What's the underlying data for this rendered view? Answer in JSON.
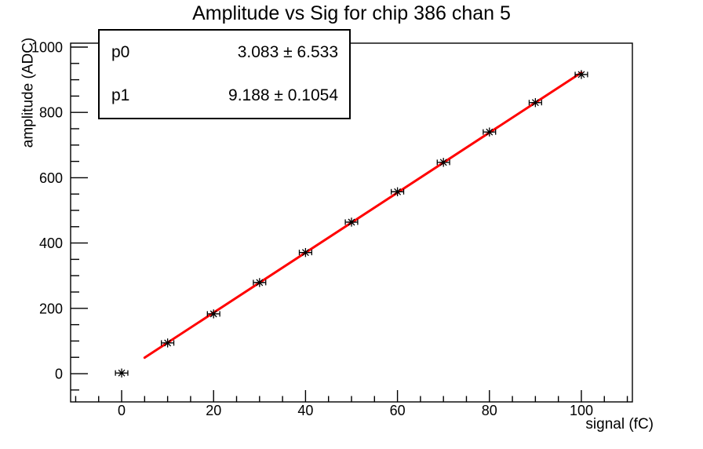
{
  "title": "Amplitude vs Sig for chip 386 chan 5",
  "stats_box": {
    "rows": [
      {
        "param": "p0",
        "value": "3.083 ± 6.533"
      },
      {
        "param": "p1",
        "value": "9.188 ± 0.1054"
      }
    ]
  },
  "chart_data": {
    "type": "scatter",
    "title": "Amplitude vs Sig for chip 386 chan 5",
    "xlabel": "signal (fC)",
    "ylabel": "amplitude (ADC)",
    "x": [
      0,
      10,
      20,
      30,
      40,
      50,
      60,
      70,
      80,
      90,
      100
    ],
    "y": [
      2,
      94,
      183,
      279,
      371,
      464,
      557,
      647,
      740,
      830,
      916
    ],
    "x_error": 1.35,
    "xlim": [
      -11.1,
      111.1
    ],
    "ylim": [
      -86.5,
      1012
    ],
    "x_major_ticks": [
      0,
      20,
      40,
      60,
      80,
      100
    ],
    "y_major_ticks": [
      0,
      200,
      400,
      600,
      800,
      1000
    ],
    "x_minor_step": 5,
    "y_minor_step": 50,
    "grid": false,
    "marker": "asterisk",
    "marker_color": "#000000",
    "fit": {
      "type": "linear",
      "p0": 3.083,
      "p0_err": 6.533,
      "p1": 9.188,
      "p1_err": 0.1054,
      "range": [
        5,
        100
      ],
      "color": "#ff0000"
    }
  },
  "colors": {
    "background": "#ffffff",
    "axis": "#000000",
    "text": "#000000",
    "fit_line": "#ff0000"
  }
}
